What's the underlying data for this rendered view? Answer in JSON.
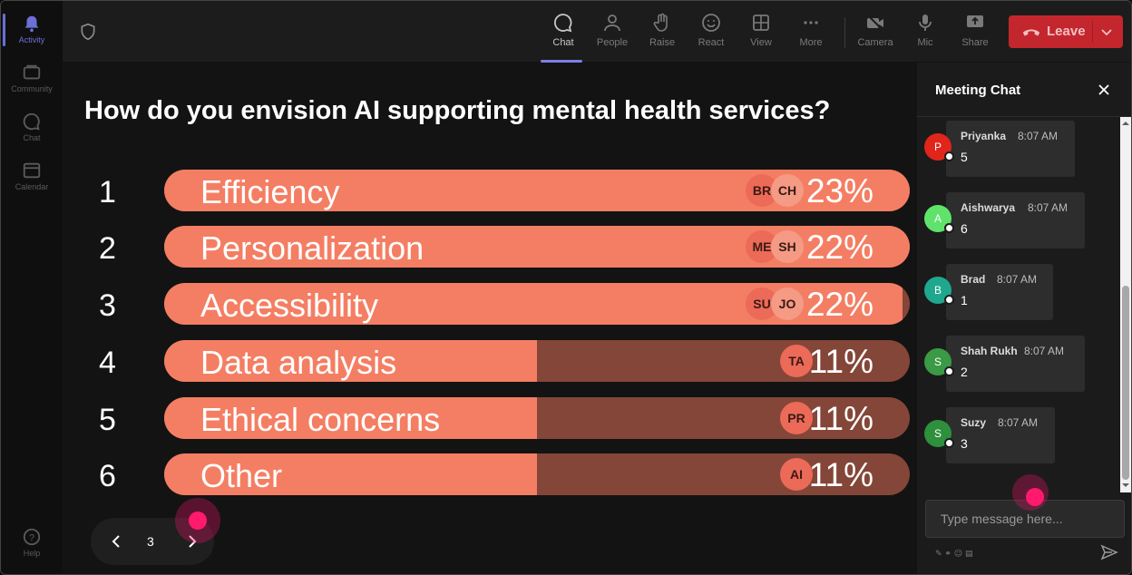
{
  "rail": [
    {
      "name": "activity",
      "label": "Activity",
      "icon": "bell-icon",
      "active": true
    },
    {
      "name": "community",
      "label": "Community",
      "icon": "community-icon"
    },
    {
      "name": "chat",
      "label": "Chat",
      "icon": "chat-icon"
    },
    {
      "name": "calendar",
      "label": "Calendar",
      "icon": "calendar-icon"
    },
    {
      "name": "help",
      "label": "Help",
      "icon": "help-icon"
    }
  ],
  "toolbar": {
    "chat": "Chat",
    "people": "People",
    "raise": "Raise",
    "react": "React",
    "view": "View",
    "more": "More",
    "camera": "Camera",
    "mic": "Mic",
    "share": "Share",
    "leave": "Leave"
  },
  "poll": {
    "question": "How do you envision AI supporting mental health services?",
    "options": [
      {
        "num": "1",
        "label": "Efficiency",
        "percent": 23,
        "percent_label": "23%",
        "avatars": [
          "BR",
          "CH"
        ]
      },
      {
        "num": "2",
        "label": "Personalization",
        "percent": 22,
        "percent_label": "22%",
        "avatars": [
          "ME",
          "SH"
        ]
      },
      {
        "num": "3",
        "label": "Accessibility",
        "percent": 22,
        "percent_label": "22%",
        "avatars": [
          "SU",
          "JO"
        ]
      },
      {
        "num": "4",
        "label": "Data analysis",
        "percent": 11,
        "percent_label": "11%",
        "avatars": [
          "TA"
        ]
      },
      {
        "num": "5",
        "label": "Ethical concerns",
        "percent": 11,
        "percent_label": "11%",
        "avatars": [
          "PR"
        ]
      },
      {
        "num": "6",
        "label": "Other",
        "percent": 11,
        "percent_label": "11%",
        "avatars": [
          "AI"
        ]
      }
    ],
    "fill_fraction": [
      1.0,
      1.0,
      0.99,
      0.5,
      0.5,
      0.5
    ],
    "page": "3"
  },
  "chat": {
    "title": "Meeting Chat",
    "messages": [
      {
        "initial": "P",
        "name": "Priyanka",
        "time": "8:07 AM",
        "text": "5",
        "color": "#e0251b"
      },
      {
        "initial": "A",
        "name": "Aishwarya",
        "time": "8:07 AM",
        "text": "6",
        "color": "#5fe36a"
      },
      {
        "initial": "B",
        "name": "Brad",
        "time": "8:07 AM",
        "text": "1",
        "color": "#1fa88e"
      },
      {
        "initial": "S",
        "name": "Shah Rukh",
        "time": "8:07 AM",
        "text": "2",
        "color": "#3a9a45"
      },
      {
        "initial": "S",
        "name": "Suzy",
        "time": "8:07 AM",
        "text": "3",
        "color": "#2e8f3d"
      }
    ],
    "placeholder": "Type message here..."
  },
  "colors": {
    "bar_fill": "#f47e63",
    "bar_track": "#844638",
    "leave": "#c4262e",
    "accent": "#6b6fd6"
  }
}
